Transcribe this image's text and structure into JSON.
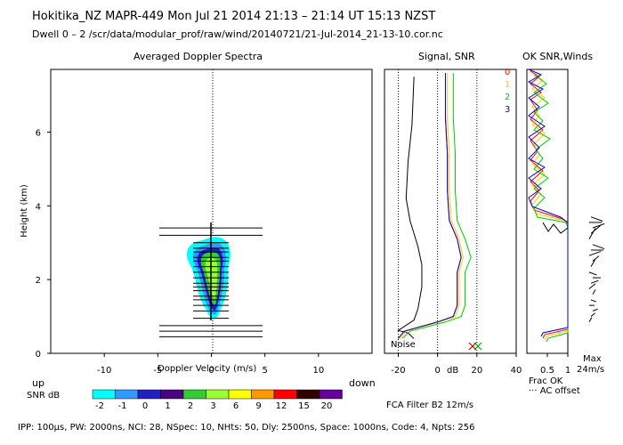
{
  "header": {
    "title": "Hokitika_NZ  MAPR-449  Mon Jul 21 2014 21:13 – 21:14 UT 15:13 NZST",
    "subtitle": "Dwell  0 –  2   /scr/data/modular_prof/raw/wind/20140721/21-Jul-2014_21-13-10.cor.nc"
  },
  "footer": {
    "params": "IPP: 100μs,  PW: 2000ns,  NCI: 28,  NSpec: 10, NHts: 50,  Dly: 2500ns,  Space: 1000ns,  Code: 4,  Npts: 256",
    "fca_filter": "FCA Filter B2 12m/s"
  },
  "colorbar": {
    "label": "SNR dB",
    "levels": [
      "-2",
      "-1",
      "0",
      "1",
      "2",
      "3",
      "6",
      "9",
      "12",
      "15",
      "20"
    ],
    "colors": [
      "#00ffff",
      "#3399ff",
      "#2020c0",
      "#4b0082",
      "#33cc33",
      "#99ff33",
      "#ffff00",
      "#ff9900",
      "#ff0000",
      "#330000",
      "#660099"
    ]
  },
  "chart_data": [
    {
      "type": "heatmap",
      "title": "Averaged Doppler Spectra",
      "xlabel": "Doppler Velocity (m/s)",
      "ylabel": "Height (km)",
      "xlim": [
        -15,
        15
      ],
      "ylim": [
        0,
        7.7
      ],
      "x_ticks": [
        "-10",
        "-5",
        "0",
        "5",
        "10"
      ],
      "y_ticks": [
        "0",
        "2",
        "4",
        "6"
      ],
      "left_note": "up",
      "right_note": "down",
      "spectra_heights_km": [
        3.4,
        3.2,
        3.0,
        2.85,
        2.75,
        2.6,
        2.5,
        2.35,
        2.2,
        2.05,
        1.9,
        1.8,
        1.7,
        1.55,
        1.45,
        1.3,
        1.15,
        0.95,
        0.75,
        0.6,
        0.45
      ]
    },
    {
      "type": "line",
      "title": "Signal, SNR",
      "xlabel": "dB",
      "xlim": [
        -27,
        40
      ],
      "ylim": [
        0,
        7.7
      ],
      "x_ticks": [
        "-20",
        "0",
        "20",
        "40"
      ],
      "noise_label": "Noise",
      "series": [
        {
          "color": "#000000",
          "points": [
            [
              -12,
              0.4
            ],
            [
              -15,
              0.55
            ],
            [
              -20,
              0.62
            ],
            [
              -12,
              0.9
            ],
            [
              -10,
              1.2
            ],
            [
              -8,
              1.8
            ],
            [
              -8,
              2.4
            ],
            [
              -10,
              2.9
            ],
            [
              -14,
              3.6
            ],
            [
              -16,
              4.2
            ],
            [
              -15,
              5.2
            ],
            [
              -13,
              6.2
            ],
            [
              -12,
              7.5
            ]
          ]
        },
        {
          "color": "#ff0000",
          "points": [
            [
              -20,
              0.4
            ],
            [
              -17,
              0.6
            ],
            [
              0,
              0.85
            ],
            [
              8,
              1.0
            ],
            [
              10,
              1.3
            ],
            [
              10,
              2.2
            ],
            [
              12,
              2.6
            ],
            [
              10,
              3.1
            ],
            [
              6,
              3.6
            ],
            [
              5,
              4.4
            ],
            [
              5,
              5.4
            ],
            [
              4,
              6.4
            ],
            [
              4,
              7.6
            ]
          ]
        },
        {
          "color": "#ffcc00",
          "points": [
            [
              -19,
              0.4
            ],
            [
              -16,
              0.6
            ],
            [
              1,
              0.85
            ],
            [
              9,
              1.0
            ],
            [
              11,
              1.3
            ],
            [
              11,
              2.2
            ],
            [
              13,
              2.6
            ],
            [
              11,
              3.1
            ],
            [
              7,
              3.6
            ],
            [
              6,
              4.4
            ],
            [
              6,
              5.4
            ],
            [
              5,
              6.4
            ],
            [
              5,
              7.6
            ]
          ]
        },
        {
          "color": "#00cc00",
          "points": [
            [
              -18,
              0.4
            ],
            [
              -14,
              0.6
            ],
            [
              4,
              0.85
            ],
            [
              12,
              1.0
            ],
            [
              14,
              1.3
            ],
            [
              14,
              2.2
            ],
            [
              17,
              2.6
            ],
            [
              14,
              3.1
            ],
            [
              10,
              3.6
            ],
            [
              9,
              4.4
            ],
            [
              9,
              5.4
            ],
            [
              8,
              6.4
            ],
            [
              8,
              7.6
            ]
          ]
        },
        {
          "color": "#0000cc",
          "points": [
            [
              -20,
              0.4
            ],
            [
              -17,
              0.6
            ],
            [
              0,
              0.85
            ],
            [
              8,
              1.0
            ],
            [
              10,
              1.3
            ],
            [
              10,
              2.2
            ],
            [
              12,
              2.6
            ],
            [
              10,
              3.1
            ],
            [
              6,
              3.6
            ],
            [
              5,
              4.4
            ],
            [
              5,
              5.4
            ],
            [
              4,
              6.4
            ],
            [
              4,
              7.6
            ]
          ]
        }
      ]
    },
    {
      "type": "line",
      "title": "OK SNR,Winds",
      "xlabel": "Frac OK",
      "xlim": [
        0,
        1
      ],
      "ylim": [
        0,
        7.7
      ],
      "x_ticks": [
        "0.5",
        "1"
      ],
      "offset_note": "··· AC offset",
      "legend": [
        {
          "label": "0",
          "color": "#ff0000"
        },
        {
          "label": "1",
          "color": "#ffcc00"
        },
        {
          "label": "2",
          "color": "#00cc00"
        },
        {
          "label": "3",
          "color": "#0000cc"
        }
      ]
    },
    {
      "type": "scatter",
      "title": "Winds",
      "max_label": "Max",
      "max_value": "24m/s",
      "wind_heights_km": [
        0.85,
        1.0,
        1.15,
        1.3,
        1.45,
        1.6,
        1.75,
        1.9,
        2.05,
        2.2,
        2.35,
        2.5,
        2.65,
        2.8,
        2.95,
        3.1,
        3.25,
        3.4,
        3.55,
        3.7
      ]
    }
  ]
}
